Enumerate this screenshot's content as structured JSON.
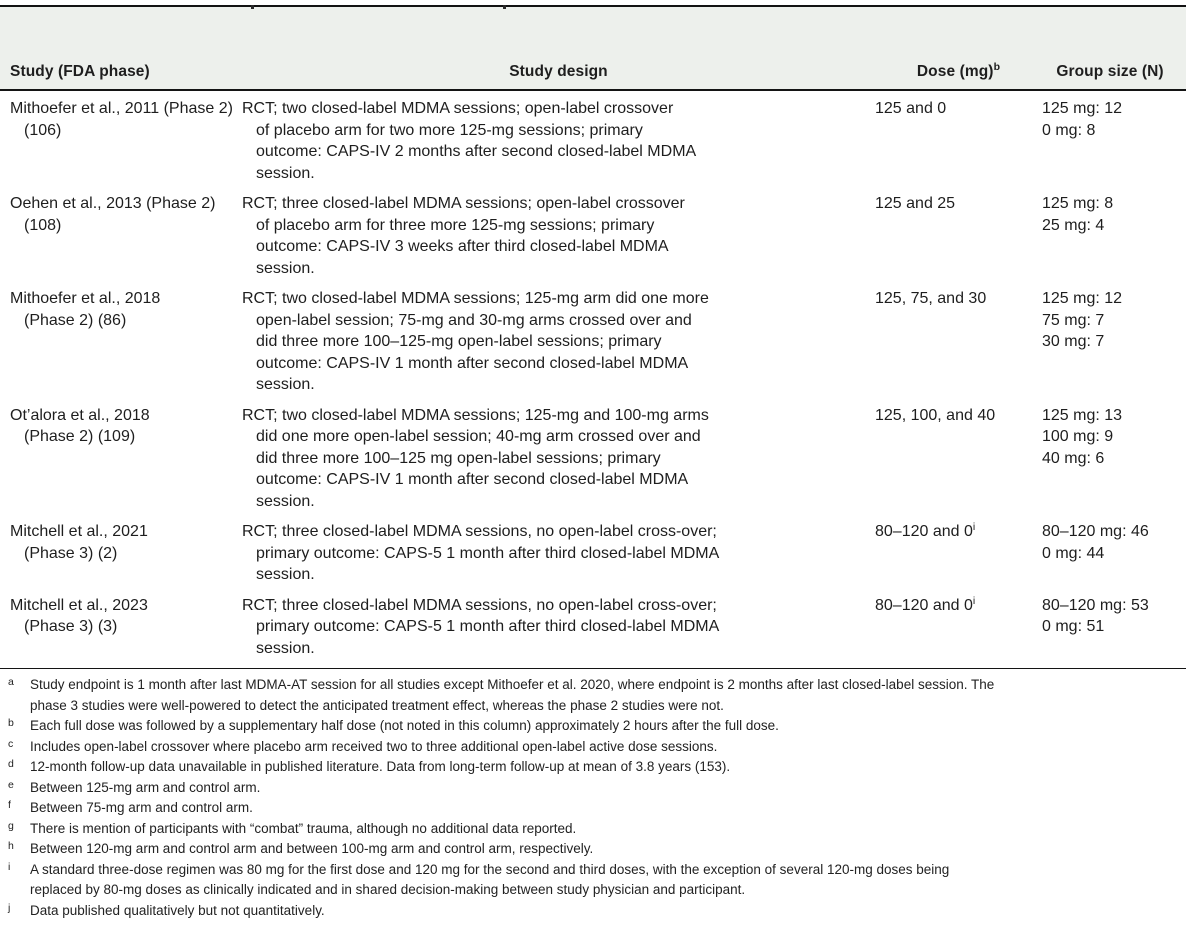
{
  "table": {
    "header": {
      "study": "Study (FDA phase)",
      "design": "Study design",
      "dose": "Dose (mg)",
      "dose_sup": "b",
      "group": "Group size (N)"
    },
    "rows": [
      {
        "study": [
          "Mithoefer et al., 2011 (Phase 2)",
          "(106)"
        ],
        "design": [
          "RCT; two closed-label MDMA sessions; open-label crossover",
          "of placebo arm for two more 125-mg sessions; primary",
          "outcome: CAPS-IV 2 months after second closed-label MDMA",
          "session."
        ],
        "dose": "125 and 0",
        "dose_sup": "",
        "group": [
          "125 mg: 12",
          "0 mg: 8"
        ]
      },
      {
        "study": [
          "Oehen et al., 2013 (Phase 2)",
          "(108)"
        ],
        "design": [
          "RCT; three closed-label MDMA sessions; open-label crossover",
          "of placebo arm for three more 125-mg sessions; primary",
          "outcome: CAPS-IV 3 weeks after third closed-label MDMA",
          "session."
        ],
        "dose": "125 and 25",
        "dose_sup": "",
        "group": [
          "125 mg: 8",
          "25 mg: 4"
        ]
      },
      {
        "study": [
          "Mithoefer et al., 2018",
          "(Phase 2) (86)"
        ],
        "design": [
          "RCT; two closed-label MDMA sessions; 125-mg arm did one more",
          "open-label session; 75-mg and 30-mg arms crossed over and",
          "did three more 100–125-mg open-label sessions; primary",
          "outcome: CAPS-IV 1 month after second closed-label MDMA",
          "session."
        ],
        "dose": "125, 75, and 30",
        "dose_sup": "",
        "group": [
          "125 mg: 12",
          "75 mg: 7",
          "30 mg: 7"
        ]
      },
      {
        "study": [
          "Ot’alora et al., 2018",
          "(Phase 2) (109)"
        ],
        "design": [
          "RCT; two closed-label MDMA sessions; 125-mg and 100-mg arms",
          "did one more open-label session; 40-mg arm crossed over and",
          "did three more 100–125 mg open-label sessions; primary",
          "outcome: CAPS-IV 1 month after second closed-label MDMA",
          "session."
        ],
        "dose": "125, 100, and 40",
        "dose_sup": "",
        "group": [
          "125 mg: 13",
          "100 mg: 9",
          "40 mg: 6"
        ]
      },
      {
        "study": [
          "Mitchell et al., 2021",
          "(Phase 3) (2)"
        ],
        "design": [
          "RCT; three closed-label MDMA sessions, no open-label cross-over;",
          "primary outcome: CAPS-5 1 month after third closed-label MDMA",
          "session."
        ],
        "dose": "80–120 and 0",
        "dose_sup": "i",
        "group": [
          "80–120 mg: 46",
          "0 mg: 44"
        ]
      },
      {
        "study": [
          "Mitchell et al., 2023",
          "(Phase 3) (3)"
        ],
        "design": [
          "RCT; three closed-label MDMA sessions, no open-label cross-over;",
          "primary outcome: CAPS-5 1 month after third closed-label MDMA",
          "session."
        ],
        "dose": "80–120 and 0",
        "dose_sup": "i",
        "group": [
          "80–120 mg: 53",
          "0 mg: 51"
        ]
      }
    ]
  },
  "footnotes": [
    {
      "mark": "a",
      "lines": [
        "Study endpoint is 1 month after last MDMA-AT session for all studies except Mithoefer et al. 2020, where endpoint is 2 months after last closed-label session. The",
        "phase 3 studies were well-powered to detect the anticipated treatment effect, whereas the phase 2 studies were not."
      ]
    },
    {
      "mark": "b",
      "lines": [
        "Each full dose was followed by a supplementary half dose (not noted in this column) approximately 2 hours after the full dose."
      ]
    },
    {
      "mark": "c",
      "lines": [
        "Includes open-label crossover where placebo arm received two to three additional open-label active dose sessions."
      ]
    },
    {
      "mark": "d",
      "lines": [
        "12-month follow-up data unavailable in published literature. Data from long-term follow-up at mean of 3.8 years (153)."
      ]
    },
    {
      "mark": "e",
      "lines": [
        "Between 125-mg arm and control arm."
      ]
    },
    {
      "mark": "f",
      "lines": [
        "Between 75-mg arm and control arm."
      ]
    },
    {
      "mark": "g",
      "lines": [
        "There is mention of participants with “combat” trauma, although no additional data reported."
      ]
    },
    {
      "mark": "h",
      "lines": [
        "Between 120-mg arm and control arm and between 100-mg arm and control arm, respectively."
      ]
    },
    {
      "mark": "i",
      "lines": [
        "A standard three-dose regimen was 80 mg for the first dose and 120 mg for the second and third doses, with the exception of several 120-mg doses being",
        "replaced by 80-mg doses as clinically indicated and in shared decision-making between study physician and participant."
      ]
    },
    {
      "mark": "j",
      "lines": [
        "Data published qualitatively but not quantitatively."
      ]
    }
  ]
}
